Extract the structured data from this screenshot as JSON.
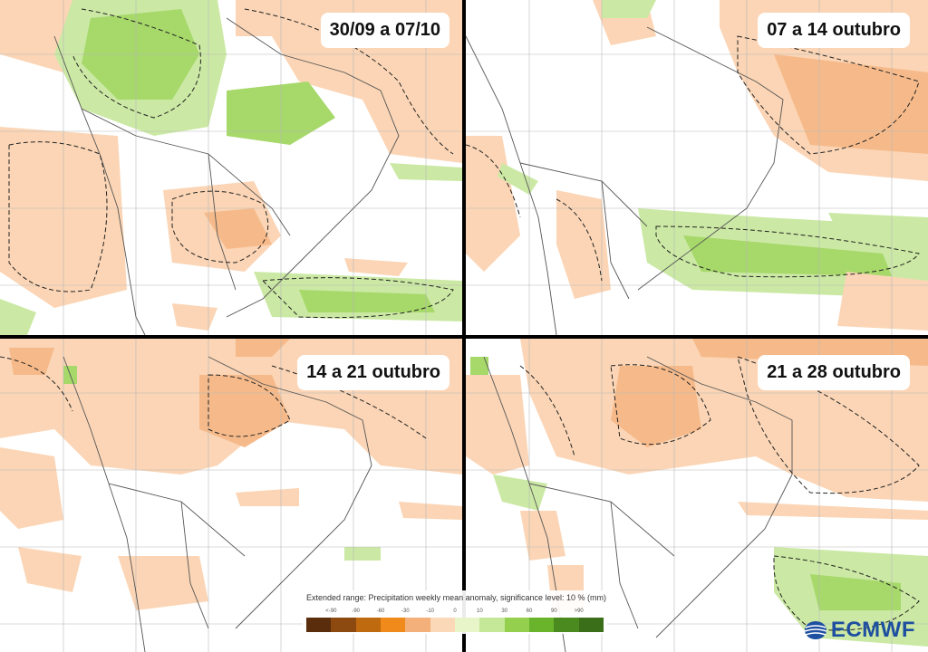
{
  "panels": [
    {
      "id": "p1",
      "label": "30/09 a 07/10"
    },
    {
      "id": "p2",
      "label": "07 a 14 outubro"
    },
    {
      "id": "p3",
      "label": "14 a 21 outubro"
    },
    {
      "id": "p4",
      "label": "21 a 28 outubro"
    }
  ],
  "legend": {
    "title": "Extended range: Precipitation weekly mean anomaly, significance level: 10 % (mm)",
    "ticks": [
      "<-90",
      "-90",
      "-60",
      "-30",
      "-10",
      "0",
      "10",
      "30",
      "60",
      "90",
      ">90"
    ],
    "colors": [
      "#5a2e0c",
      "#8c4a10",
      "#c06a10",
      "#f08a1a",
      "#f3b07a",
      "#fbd8b8",
      "#e8f5c8",
      "#c4e898",
      "#94d04e",
      "#6ab42c",
      "#4a8a1e",
      "#3a6e18"
    ]
  },
  "logo": {
    "text": "ECMWF"
  },
  "colors": {
    "dry_light": "#fbd5b5",
    "dry_mid": "#f6ba8a",
    "dry_strong": "#f0a060",
    "wet_light": "#cbe9a4",
    "wet_mid": "#a6d86a",
    "wet_strong": "#86c640"
  }
}
